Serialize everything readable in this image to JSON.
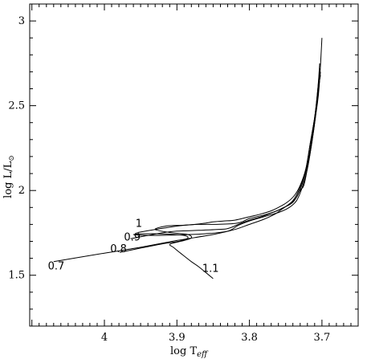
{
  "chart_data": {
    "type": "line",
    "title": "",
    "xlabel": {
      "main": "log T",
      "sub": "eff"
    },
    "ylabel": {
      "main": "log L/L",
      "sub": "⊙"
    },
    "x_axis": {
      "min": 3.65,
      "max": 4.103,
      "reversed": true
    },
    "y_axis": {
      "min": 1.2,
      "max": 3.1
    },
    "x_ticks": [
      {
        "value": 4.0,
        "label": "4"
      },
      {
        "value": 3.9,
        "label": "3.9"
      },
      {
        "value": 3.8,
        "label": "3.8"
      },
      {
        "value": 3.7,
        "label": "3.7"
      }
    ],
    "y_ticks": [
      {
        "value": 1.5,
        "label": "1.5"
      },
      {
        "value": 2.0,
        "label": "2"
      },
      {
        "value": 2.5,
        "label": "2.5"
      },
      {
        "value": 3.0,
        "label": "3"
      }
    ],
    "grid": false,
    "legend": "none",
    "series": [
      {
        "name": "0.7",
        "points": [
          [
            4.07,
            1.58
          ],
          [
            4.0,
            1.63
          ],
          [
            3.95,
            1.665
          ],
          [
            3.9,
            1.705
          ],
          [
            3.85,
            1.74
          ],
          [
            3.82,
            1.77
          ],
          [
            3.8,
            1.8
          ],
          [
            3.78,
            1.83
          ],
          [
            3.765,
            1.86
          ],
          [
            3.755,
            1.89
          ],
          [
            3.745,
            1.92
          ],
          [
            3.735,
            1.96
          ],
          [
            3.727,
            2.04
          ],
          [
            3.72,
            2.15
          ],
          [
            3.714,
            2.3
          ],
          [
            3.709,
            2.45
          ],
          [
            3.705,
            2.6
          ],
          [
            3.702,
            2.68
          ]
        ]
      },
      {
        "name": "0.8",
        "points": [
          [
            3.979,
            1.635
          ],
          [
            3.95,
            1.66
          ],
          [
            3.92,
            1.685
          ],
          [
            3.898,
            1.7
          ],
          [
            3.885,
            1.72
          ],
          [
            3.89,
            1.735
          ],
          [
            3.91,
            1.742
          ],
          [
            3.94,
            1.745
          ],
          [
            3.96,
            1.74
          ],
          [
            3.94,
            1.735
          ],
          [
            3.9,
            1.738
          ],
          [
            3.86,
            1.745
          ],
          [
            3.83,
            1.76
          ],
          [
            3.815,
            1.795
          ],
          [
            3.8,
            1.82
          ],
          [
            3.78,
            1.845
          ],
          [
            3.76,
            1.87
          ],
          [
            3.745,
            1.9
          ],
          [
            3.735,
            1.94
          ],
          [
            3.727,
            2.02
          ],
          [
            3.72,
            2.13
          ],
          [
            3.714,
            2.28
          ],
          [
            3.709,
            2.43
          ],
          [
            3.705,
            2.58
          ],
          [
            3.702,
            2.7
          ]
        ]
      },
      {
        "name": "0.9",
        "points": [
          [
            3.964,
            1.715
          ],
          [
            3.94,
            1.735
          ],
          [
            3.92,
            1.75
          ],
          [
            3.9,
            1.76
          ],
          [
            3.87,
            1.765
          ],
          [
            3.845,
            1.77
          ],
          [
            3.83,
            1.775
          ],
          [
            3.815,
            1.8
          ],
          [
            3.8,
            1.825
          ],
          [
            3.78,
            1.85
          ],
          [
            3.765,
            1.875
          ],
          [
            3.752,
            1.9
          ],
          [
            3.74,
            1.94
          ],
          [
            3.73,
            2.02
          ],
          [
            3.722,
            2.13
          ],
          [
            3.716,
            2.28
          ],
          [
            3.71,
            2.43
          ],
          [
            3.706,
            2.58
          ],
          [
            3.703,
            2.72
          ]
        ]
      },
      {
        "name": "1",
        "points": [
          [
            3.954,
            1.752
          ],
          [
            3.93,
            1.77
          ],
          [
            3.915,
            1.78
          ],
          [
            3.9,
            1.79
          ],
          [
            3.875,
            1.8
          ],
          [
            3.86,
            1.808
          ],
          [
            3.85,
            1.815
          ],
          [
            3.835,
            1.82
          ],
          [
            3.82,
            1.825
          ],
          [
            3.8,
            1.845
          ],
          [
            3.785,
            1.86
          ],
          [
            3.77,
            1.88
          ],
          [
            3.76,
            1.9
          ],
          [
            3.748,
            1.93
          ],
          [
            3.738,
            1.97
          ],
          [
            3.73,
            2.03
          ],
          [
            3.722,
            2.13
          ],
          [
            3.716,
            2.28
          ],
          [
            3.71,
            2.43
          ],
          [
            3.706,
            2.58
          ],
          [
            3.703,
            2.75
          ]
        ]
      },
      {
        "name": "1.1",
        "points": [
          [
            3.85,
            1.48
          ],
          [
            3.87,
            1.55
          ],
          [
            3.88,
            1.58
          ],
          [
            3.895,
            1.63
          ],
          [
            3.905,
            1.665
          ],
          [
            3.91,
            1.68
          ],
          [
            3.905,
            1.69
          ],
          [
            3.89,
            1.705
          ],
          [
            3.88,
            1.72
          ],
          [
            3.885,
            1.74
          ],
          [
            3.91,
            1.752
          ],
          [
            3.93,
            1.77
          ],
          [
            3.915,
            1.79
          ],
          [
            3.89,
            1.795
          ],
          [
            3.87,
            1.8
          ],
          [
            3.845,
            1.8
          ],
          [
            3.82,
            1.805
          ],
          [
            3.81,
            1.815
          ],
          [
            3.8,
            1.835
          ],
          [
            3.78,
            1.855
          ],
          [
            3.765,
            1.875
          ],
          [
            3.755,
            1.895
          ],
          [
            3.74,
            1.93
          ],
          [
            3.73,
            2.0
          ],
          [
            3.725,
            2.03
          ],
          [
            3.72,
            2.13
          ],
          [
            3.714,
            2.28
          ],
          [
            3.709,
            2.43
          ],
          [
            3.704,
            2.6
          ],
          [
            3.7,
            2.9
          ]
        ]
      }
    ],
    "annotations": [
      {
        "text": "1",
        "x": 3.957,
        "y": 1.785
      },
      {
        "text": "0.9",
        "x": 3.973,
        "y": 1.705
      },
      {
        "text": "0.8",
        "x": 3.992,
        "y": 1.635
      },
      {
        "text": "0.7",
        "x": 4.078,
        "y": 1.535
      },
      {
        "text": "1.1",
        "x": 3.865,
        "y": 1.52
      }
    ]
  }
}
